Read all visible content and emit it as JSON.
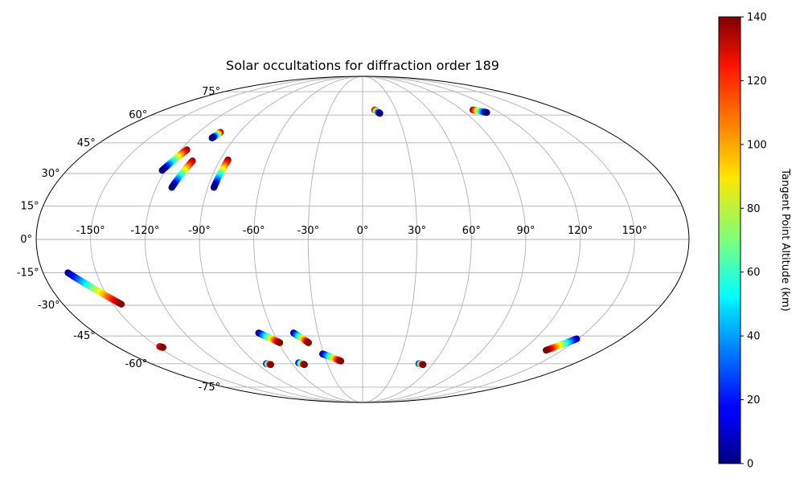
{
  "chart_data": {
    "type": "scatter",
    "projection": "mollweide",
    "title": "Solar occultations for diffraction order 189",
    "longitude_ticks": [
      -150,
      -120,
      -90,
      -60,
      -30,
      0,
      30,
      60,
      90,
      120,
      150
    ],
    "longitude_tick_labels": [
      "-150°",
      "-120°",
      "-90°",
      "-60°",
      "-30°",
      "0°",
      "30°",
      "60°",
      "90°",
      "120°",
      "150°"
    ],
    "latitude_ticks": [
      -75,
      -60,
      -45,
      -30,
      -15,
      0,
      15,
      30,
      45,
      60,
      75
    ],
    "latitude_tick_labels": [
      "-75°",
      "-60°",
      "-45°",
      "-30°",
      "-15°",
      "0°",
      "15°",
      "30°",
      "45°",
      "60°",
      "75°"
    ],
    "grid": true,
    "colorbar": {
      "label": "Tangent Point Altitude (km)",
      "colormap": "jet",
      "range": [
        0,
        140
      ],
      "ticks": [
        0,
        20,
        40,
        60,
        80,
        100,
        120,
        140
      ],
      "tick_labels": [
        "0",
        "20",
        "40",
        "60",
        "80",
        "100",
        "120",
        "140"
      ]
    },
    "tracks": [
      {
        "lon_start": -116,
        "lat_start": 41.5,
        "lon_end": -122,
        "lat_end": 31.5,
        "alt_start": 140,
        "alt_end": 0
      },
      {
        "lon_start": -104,
        "lat_start": 50.5,
        "lon_end": -106,
        "lat_end": 47.5,
        "alt_start": 140,
        "alt_end": 0
      },
      {
        "lon_start": -107,
        "lat_start": 36,
        "lon_end": -111,
        "lat_end": 23.5,
        "alt_start": 140,
        "alt_end": 0
      },
      {
        "lon_start": -85,
        "lat_start": 36.5,
        "lon_end": -86.5,
        "lat_end": 23.5,
        "alt_start": 140,
        "alt_end": 0
      },
      {
        "lon_start": 11,
        "lat_start": 63,
        "lon_end": 15,
        "lat_end": 61,
        "alt_start": 140,
        "alt_end": 0
      },
      {
        "lon_start": 100,
        "lat_start": 63,
        "lon_end": 109,
        "lat_end": 61.5,
        "alt_start": 140,
        "alt_end": 0
      },
      {
        "lon_start": -166,
        "lat_start": -15,
        "lon_end": -145,
        "lat_end": -29.5,
        "alt_start": 0,
        "alt_end": 140
      },
      {
        "lon_start": -70,
        "lat_start": -43.5,
        "lon_end": -59,
        "lat_end": -48.5,
        "alt_start": 0,
        "alt_end": 140
      },
      {
        "lon_start": -46.5,
        "lat_start": -43.5,
        "lon_end": -38.5,
        "lat_end": -48.5,
        "alt_start": 0,
        "alt_end": 140
      },
      {
        "lon_start": -31,
        "lat_start": -54.5,
        "lon_end": -18,
        "lat_end": -58.5,
        "alt_start": 0,
        "alt_end": 140
      },
      {
        "lon_start": -54,
        "lat_start": -59.5,
        "lon_end": -50,
        "lat_end": -60.5,
        "alt_start": 0,
        "alt_end": 140
      },
      {
        "lon_start": -82,
        "lat_start": -60,
        "lon_end": -79,
        "lat_end": -60.5,
        "alt_start": 0,
        "alt_end": 140
      },
      {
        "lon_start": 48,
        "lat_start": -60,
        "lon_end": 52,
        "lat_end": -60.5,
        "alt_start": 0,
        "alt_end": 140
      },
      {
        "lon_start": -148.5,
        "lat_start": -50.5,
        "lon_end": -147,
        "lat_end": -51,
        "alt_start": 120,
        "alt_end": 140
      },
      {
        "lon_start": 149,
        "lat_start": -46.5,
        "lon_end": 138,
        "lat_end": -52.5,
        "alt_start": 0,
        "alt_end": 140
      }
    ]
  }
}
